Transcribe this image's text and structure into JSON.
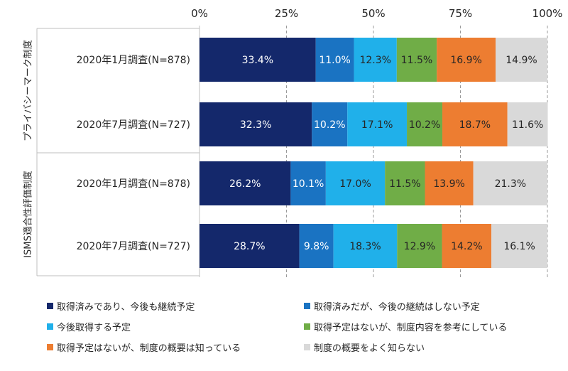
{
  "chart_data": {
    "type": "bar",
    "orientation": "horizontal",
    "stacked": true,
    "percent": true,
    "xlim": [
      0,
      100
    ],
    "x_ticks": [
      "0%",
      "25%",
      "50%",
      "75%",
      "100%"
    ],
    "groups": [
      {
        "label": "プライバシーマーク制度",
        "rows": [
          0,
          1
        ]
      },
      {
        "label": "ISMS適合性評価制度",
        "rows": [
          2,
          3
        ]
      }
    ],
    "categories": [
      "2020年1月調査(N=878)",
      "2020年7月調査(N=727)",
      "2020年1月調査(N=878)",
      "2020年7月調査(N=727)"
    ],
    "series": [
      {
        "name": "取得済みであり、今後も継続予定",
        "color": "#14286b",
        "label_color": "#ffffff",
        "values": [
          33.4,
          32.3,
          26.2,
          28.7
        ],
        "labels": [
          "33.4%",
          "32.3%",
          "26.2%",
          "28.7%"
        ]
      },
      {
        "name": "取得済みだが、今後の継続はしない予定",
        "color": "#1a73c2",
        "label_color": "#ffffff",
        "values": [
          11.0,
          10.2,
          10.1,
          9.8
        ],
        "labels": [
          "11.0%",
          "10.2%",
          "10.1%",
          "9.8%"
        ]
      },
      {
        "name": "今後取得する予定",
        "color": "#20b0ea",
        "label_color": "#262626",
        "values": [
          12.3,
          17.1,
          17.0,
          18.3
        ],
        "labels": [
          "12.3%",
          "17.1%",
          "17.0%",
          "18.3%"
        ]
      },
      {
        "name": "取得予定はないが、制度内容を参考にしている",
        "color": "#70ad47",
        "label_color": "#262626",
        "values": [
          11.5,
          10.2,
          11.5,
          12.9
        ],
        "labels": [
          "11.5%",
          "10.2%",
          "11.5%",
          "12.9%"
        ]
      },
      {
        "name": "取得予定はないが、制度の概要は知っている",
        "color": "#ed7d31",
        "label_color": "#262626",
        "values": [
          16.9,
          18.7,
          13.9,
          14.2
        ],
        "labels": [
          "16.9%",
          "18.7%",
          "13.9%",
          "14.2%"
        ]
      },
      {
        "name": "制度の概要をよく知らない",
        "color": "#d9d9d9",
        "label_color": "#262626",
        "values": [
          14.9,
          11.6,
          21.3,
          16.1
        ],
        "labels": [
          "14.9%",
          "11.6%",
          "21.3%",
          "16.1%"
        ]
      }
    ],
    "grid": true,
    "legend_position": "bottom"
  }
}
